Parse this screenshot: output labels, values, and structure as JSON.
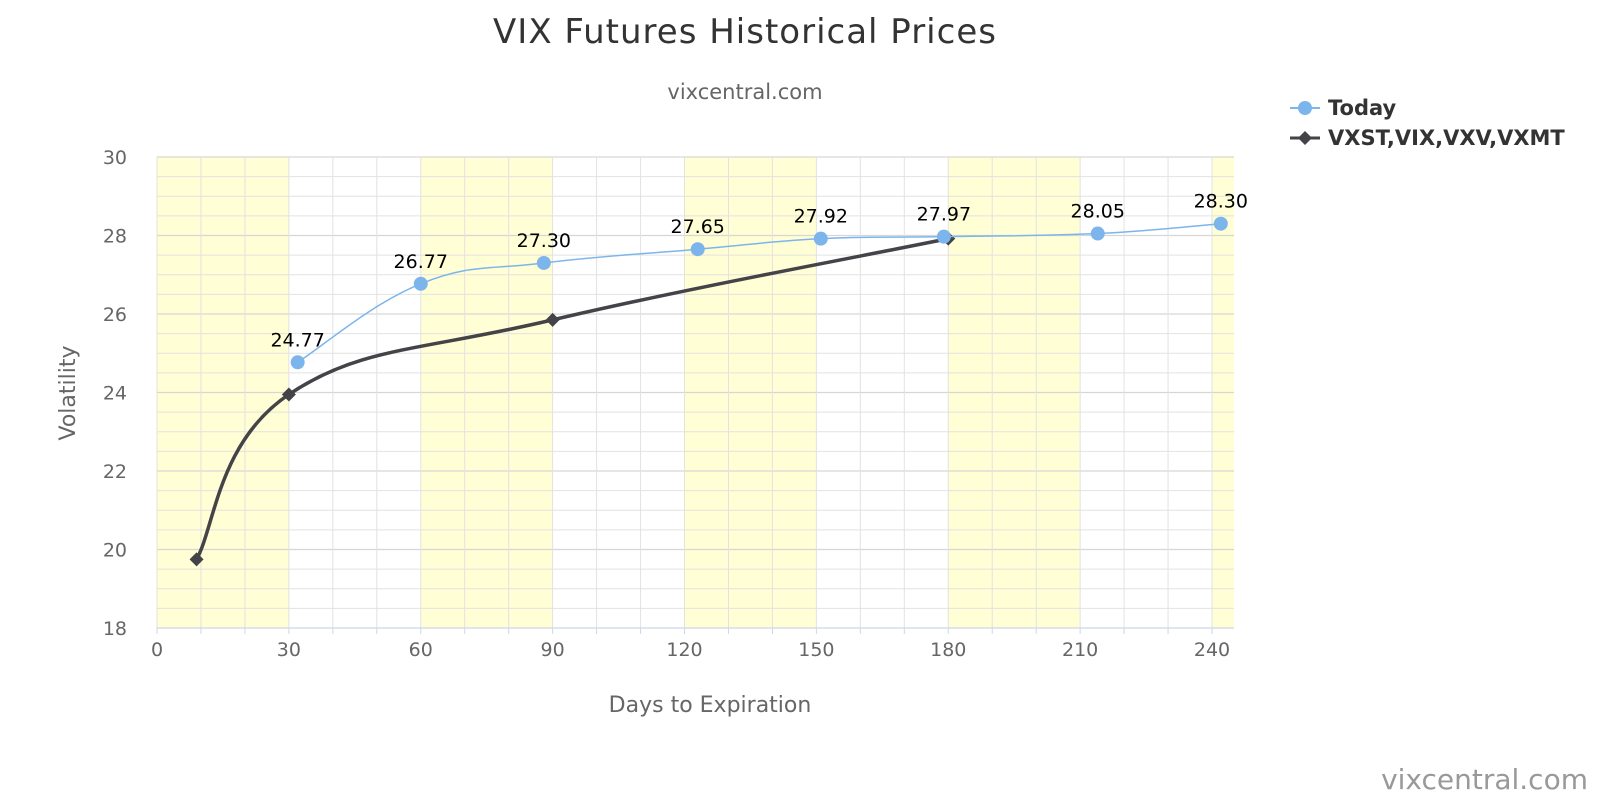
{
  "chart_data": {
    "type": "line",
    "title": "VIX Futures Historical Prices",
    "subtitle": "vixcentral.com",
    "credit": "vixcentral.com",
    "xlabel": "Days to Expiration",
    "ylabel": "Volatility",
    "xlim": [
      0,
      245
    ],
    "ylim": [
      18,
      30
    ],
    "x_ticks": [
      0,
      30,
      60,
      90,
      120,
      150,
      180,
      210,
      240
    ],
    "y_ticks": [
      18,
      20,
      22,
      24,
      26,
      28,
      30
    ],
    "grid": true,
    "legend_position": "top-right",
    "bands_x": [
      [
        0,
        30
      ],
      [
        60,
        90
      ],
      [
        120,
        150
      ],
      [
        180,
        210
      ],
      [
        240,
        245
      ]
    ],
    "band_color": "#fffed4",
    "series": [
      {
        "name": "Today",
        "color": "#7cb5ec",
        "marker": "circle",
        "x": [
          32,
          60,
          88,
          123,
          151,
          179,
          214,
          242
        ],
        "values": [
          24.77,
          26.77,
          27.3,
          27.65,
          27.92,
          27.97,
          28.05,
          28.3
        ],
        "labels": [
          "24.77",
          "26.77",
          "27.30",
          "27.65",
          "27.92",
          "27.97",
          "28.05",
          "28.30"
        ]
      },
      {
        "name": "VXST,VIX,VXV,VXMT",
        "color": "#434348",
        "marker": "diamond",
        "x": [
          9,
          30,
          90,
          180
        ],
        "values": [
          19.75,
          23.95,
          25.85,
          27.92
        ]
      }
    ]
  }
}
